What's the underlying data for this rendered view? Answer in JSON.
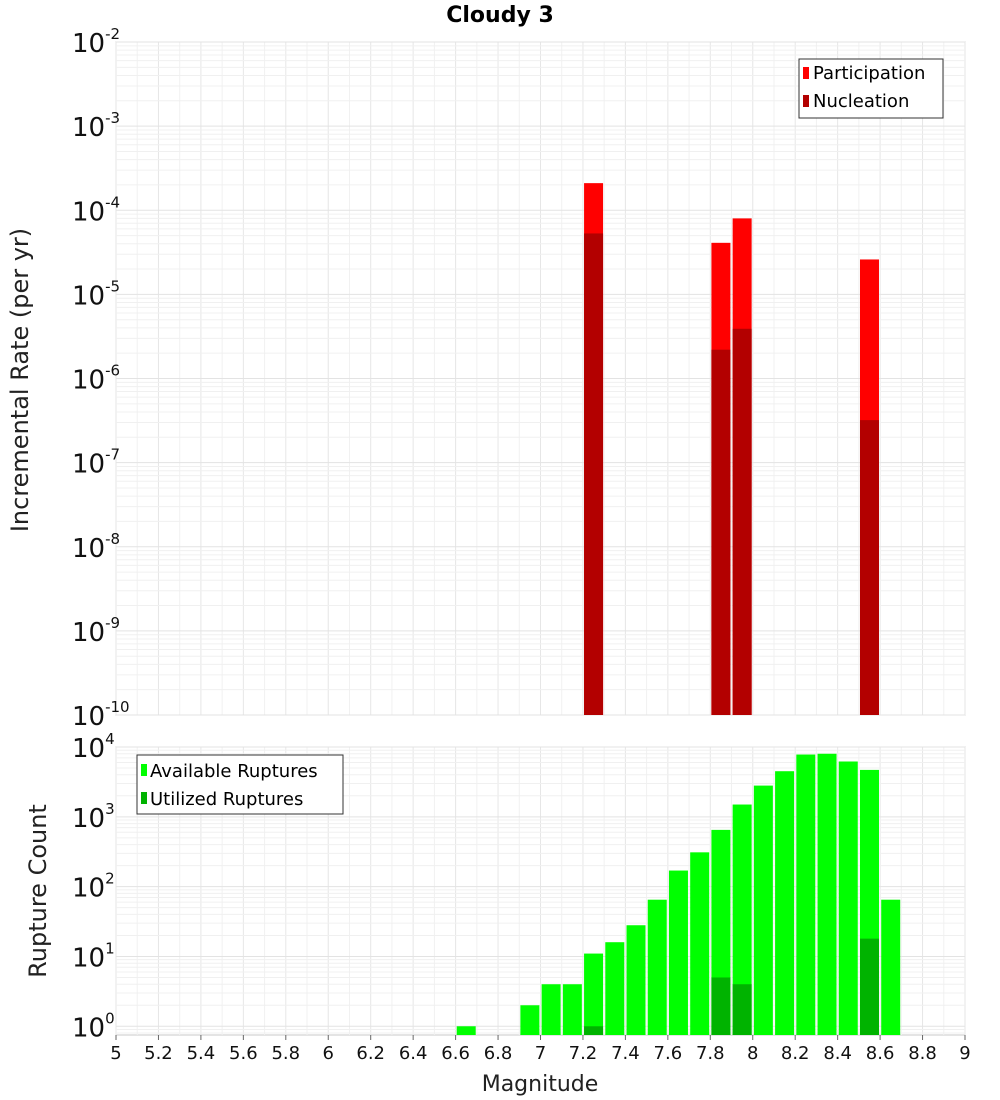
{
  "chart_data": [
    {
      "type": "bar",
      "title": "Cloudy 3",
      "ylabel": "Incremental Rate (per yr)",
      "xlabel": "",
      "yscale": "log",
      "ylim": [
        1e-10,
        0.01
      ],
      "xlim": [
        5,
        9
      ],
      "y_tick_exponents": [
        "-10",
        "-9",
        "-8",
        "-7",
        "-6",
        "-5",
        "-4",
        "-3",
        "-2"
      ],
      "grid": true,
      "legend_position": "top-right",
      "colors": {
        "Participation": "#ff0000",
        "Nucleation": "#b30000"
      },
      "x": [
        7.25,
        7.85,
        7.95,
        8.55
      ],
      "series": [
        {
          "name": "Participation",
          "values": [
            0.00021,
            4.1e-05,
            8e-05,
            2.6e-05
          ]
        },
        {
          "name": "Nucleation",
          "values": [
            5.3e-05,
            2.2e-06,
            3.9e-06,
            3.2e-07
          ]
        }
      ]
    },
    {
      "type": "bar",
      "title": "",
      "ylabel": "Rupture Count",
      "xlabel": "Magnitude",
      "yscale": "log",
      "ylim": [
        0.75,
        10000
      ],
      "xlim": [
        5,
        9
      ],
      "y_tick_exponents": [
        "0",
        "1",
        "2",
        "3",
        "4"
      ],
      "x_ticks": [
        "5",
        "5.2",
        "5.4",
        "5.6",
        "5.8",
        "6",
        "6.2",
        "6.4",
        "6.6",
        "6.8",
        "7",
        "7.2",
        "7.4",
        "7.6",
        "7.8",
        "8",
        "8.2",
        "8.4",
        "8.6",
        "8.8",
        "9"
      ],
      "grid": true,
      "legend_position": "top-left",
      "colors": {
        "Available Ruptures": "#00ff00",
        "Utilized Ruptures": "#00b300"
      },
      "x": [
        6.65,
        6.95,
        7.05,
        7.15,
        7.25,
        7.35,
        7.45,
        7.55,
        7.65,
        7.75,
        7.85,
        7.95,
        8.05,
        8.15,
        8.25,
        8.35,
        8.45,
        8.55,
        8.65
      ],
      "series": [
        {
          "name": "Available Ruptures",
          "values": [
            1,
            2,
            4,
            4,
            11,
            16,
            28,
            65,
            170,
            310,
            650,
            1500,
            2800,
            4500,
            7800,
            8000,
            6200,
            4700,
            65
          ]
        },
        {
          "name": "Utilized Ruptures",
          "values": [
            0,
            0,
            0,
            0,
            1,
            0,
            0,
            0,
            0,
            0,
            5,
            4,
            0,
            0,
            0,
            0,
            0,
            18,
            0
          ]
        }
      ]
    }
  ]
}
